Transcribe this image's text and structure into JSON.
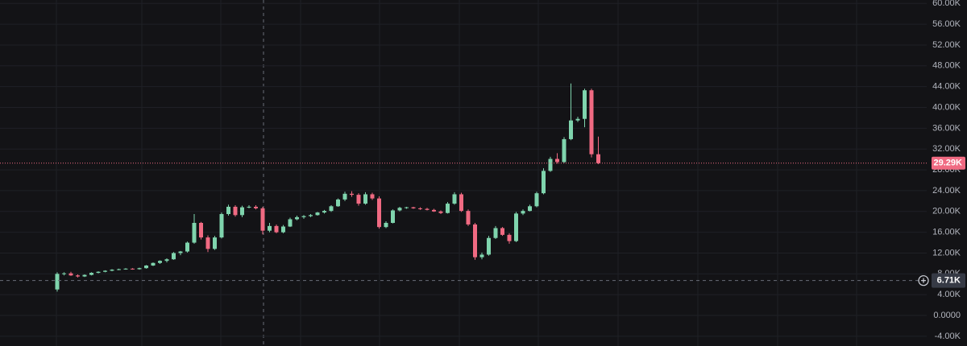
{
  "chart_data": {
    "type": "candlestick",
    "up_color": "#7fd4ad",
    "down_color": "#f06a82",
    "grid": true,
    "ylim": [
      -4000,
      60000
    ],
    "yticks": [
      {
        "value": -4000,
        "label": "-4.00K"
      },
      {
        "value": 0,
        "label": "0.0000"
      },
      {
        "value": 4000,
        "label": "4.00K"
      },
      {
        "value": 8000,
        "label": "8.00K"
      },
      {
        "value": 12000,
        "label": "12.00K"
      },
      {
        "value": 16000,
        "label": "16.00K"
      },
      {
        "value": 20000,
        "label": "20.00K"
      },
      {
        "value": 24000,
        "label": "24.00K"
      },
      {
        "value": 28000,
        "label": "28.00K"
      },
      {
        "value": 32000,
        "label": "32.00K"
      },
      {
        "value": 36000,
        "label": "36.00K"
      },
      {
        "value": 40000,
        "label": "40.00K"
      },
      {
        "value": 44000,
        "label": "44.00K"
      },
      {
        "value": 48000,
        "label": "48.00K"
      },
      {
        "value": 52000,
        "label": "52.00K"
      },
      {
        "value": 56000,
        "label": "56.00K"
      },
      {
        "value": 60000,
        "label": "60.00K"
      }
    ],
    "last_price": {
      "value": 29290,
      "label": "29.29K"
    },
    "crosshair": {
      "value": 6710,
      "label": "6.71K"
    },
    "open": [
      5000,
      8000,
      8100,
      7700,
      7500,
      7800,
      8200,
      8400,
      8600,
      8800,
      8900,
      9000,
      8900,
      9100,
      9600,
      10100,
      10500,
      10800,
      12000,
      12300,
      14000,
      17800,
      15000,
      12800,
      15000,
      19500,
      20900,
      19300,
      20800,
      20900,
      20600,
      16300,
      17200,
      16000,
      17100,
      18500,
      18900,
      19100,
      19300,
      19800,
      20100,
      21000,
      22300,
      23400,
      23200,
      21500,
      23300,
      22500,
      17000,
      17800,
      20200,
      20700,
      20800,
      20600,
      20500,
      20300,
      20000,
      19700,
      21500,
      23300,
      20100,
      17500,
      11200,
      11700,
      14900,
      16800,
      15500,
      14300,
      19600,
      20100,
      21000,
      23500,
      27800,
      30100,
      29500,
      33900,
      37500,
      37800,
      43300,
      31000
    ],
    "high": [
      8300,
      8300,
      8400,
      7900,
      7900,
      8300,
      8500,
      8700,
      8900,
      9000,
      9100,
      9100,
      9200,
      9700,
      10200,
      10600,
      11000,
      12200,
      12400,
      14200,
      19500,
      18000,
      15400,
      15300,
      19800,
      21300,
      21200,
      21100,
      21200,
      21200,
      20900,
      17800,
      17500,
      17400,
      18800,
      19200,
      19300,
      19500,
      19900,
      20300,
      21200,
      22500,
      23800,
      23900,
      23500,
      23700,
      23600,
      22900,
      18100,
      20400,
      20900,
      20900,
      20900,
      20800,
      20700,
      20500,
      20200,
      21800,
      23700,
      23600,
      20400,
      17800,
      12100,
      15300,
      17200,
      17000,
      15800,
      19900,
      20400,
      21300,
      23800,
      28300,
      30500,
      31200,
      34300,
      44600,
      38200,
      43600,
      43600,
      34400
    ],
    "low": [
      4600,
      7700,
      7600,
      7300,
      7400,
      7700,
      8100,
      8300,
      8500,
      8700,
      8800,
      8800,
      8800,
      9000,
      9500,
      9900,
      10200,
      10700,
      11600,
      12100,
      13800,
      14600,
      12200,
      12600,
      14800,
      19200,
      19000,
      18900,
      20600,
      20400,
      15600,
      16000,
      15800,
      15800,
      17000,
      18300,
      18600,
      18900,
      19200,
      19600,
      19900,
      20900,
      22000,
      22800,
      21100,
      21300,
      22200,
      16700,
      16800,
      17700,
      20000,
      20500,
      20500,
      20300,
      20200,
      19900,
      19500,
      19600,
      21300,
      19900,
      17200,
      10700,
      10800,
      11500,
      14700,
      15300,
      13800,
      14100,
      19300,
      20000,
      20800,
      23300,
      27600,
      29200,
      29300,
      33700,
      37200,
      36200,
      30400,
      29100
    ],
    "close": [
      8000,
      8100,
      7700,
      7500,
      7800,
      8200,
      8400,
      8600,
      8800,
      8900,
      9000,
      8900,
      9100,
      9600,
      10100,
      10500,
      10800,
      12000,
      12300,
      14000,
      17800,
      15000,
      12800,
      15000,
      19500,
      20900,
      19300,
      20800,
      20900,
      20600,
      16300,
      17200,
      16000,
      17100,
      18500,
      18900,
      19100,
      19300,
      19800,
      20100,
      21000,
      22300,
      23400,
      23200,
      21500,
      23300,
      22500,
      17000,
      17800,
      20200,
      20700,
      20800,
      20600,
      20500,
      20300,
      20000,
      19700,
      21500,
      23300,
      20100,
      17500,
      11200,
      11700,
      14900,
      16800,
      15500,
      14300,
      19600,
      20100,
      21000,
      23500,
      27800,
      30100,
      29500,
      33900,
      37500,
      37800,
      43300,
      31000,
      29290
    ]
  }
}
